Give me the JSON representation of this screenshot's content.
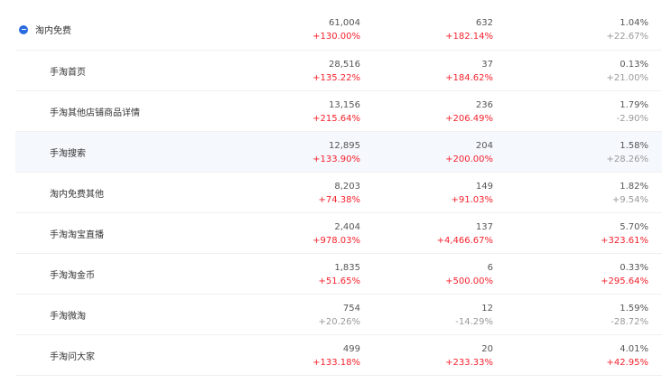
{
  "colors": {
    "accent": "#2a6be0",
    "up": "#f5222d",
    "neutral": "#999999",
    "hover_row": "#f5f8fd"
  },
  "rows": [
    {
      "name": "淘内免费",
      "level": "parent",
      "icon": "collapse-minus-icon",
      "cells": [
        {
          "value": "61,004",
          "change": "+130.00%",
          "up": true
        },
        {
          "value": "632",
          "change": "+182.14%",
          "up": true
        },
        {
          "value": "1.04%",
          "change": "+22.67%",
          "up": false
        }
      ]
    },
    {
      "name": "手淘首页",
      "level": "child",
      "cells": [
        {
          "value": "28,516",
          "change": "+135.22%",
          "up": true
        },
        {
          "value": "37",
          "change": "+184.62%",
          "up": true
        },
        {
          "value": "0.13%",
          "change": "+21.00%",
          "up": false
        }
      ]
    },
    {
      "name": "手淘其他店铺商品详情",
      "level": "child",
      "cells": [
        {
          "value": "13,156",
          "change": "+215.64%",
          "up": true
        },
        {
          "value": "236",
          "change": "+206.49%",
          "up": true
        },
        {
          "value": "1.79%",
          "change": "-2.90%",
          "up": false
        }
      ]
    },
    {
      "name": "手淘搜索",
      "level": "child",
      "highlighted": true,
      "cells": [
        {
          "value": "12,895",
          "change": "+133.90%",
          "up": true
        },
        {
          "value": "204",
          "change": "+200.00%",
          "up": true
        },
        {
          "value": "1.58%",
          "change": "+28.26%",
          "up": false
        }
      ]
    },
    {
      "name": "淘内免费其他",
      "level": "child",
      "cells": [
        {
          "value": "8,203",
          "change": "+74.38%",
          "up": true
        },
        {
          "value": "149",
          "change": "+91.03%",
          "up": true
        },
        {
          "value": "1.82%",
          "change": "+9.54%",
          "up": false
        }
      ]
    },
    {
      "name": "手淘淘宝直播",
      "level": "child",
      "cells": [
        {
          "value": "2,404",
          "change": "+978.03%",
          "up": true
        },
        {
          "value": "137",
          "change": "+4,466.67%",
          "up": true
        },
        {
          "value": "5.70%",
          "change": "+323.61%",
          "up": true
        }
      ]
    },
    {
      "name": "手淘淘金币",
      "level": "child",
      "cells": [
        {
          "value": "1,835",
          "change": "+51.65%",
          "up": true
        },
        {
          "value": "6",
          "change": "+500.00%",
          "up": true
        },
        {
          "value": "0.33%",
          "change": "+295.64%",
          "up": true
        }
      ]
    },
    {
      "name": "手淘微淘",
      "level": "child",
      "cells": [
        {
          "value": "754",
          "change": "+20.26%",
          "up": false
        },
        {
          "value": "12",
          "change": "-14.29%",
          "up": false
        },
        {
          "value": "1.59%",
          "change": "-28.72%",
          "up": false
        }
      ]
    },
    {
      "name": "手淘问大家",
      "level": "child",
      "cells": [
        {
          "value": "499",
          "change": "+133.18%",
          "up": true
        },
        {
          "value": "20",
          "change": "+233.33%",
          "up": true
        },
        {
          "value": "4.01%",
          "change": "+42.95%",
          "up": true
        }
      ]
    }
  ]
}
